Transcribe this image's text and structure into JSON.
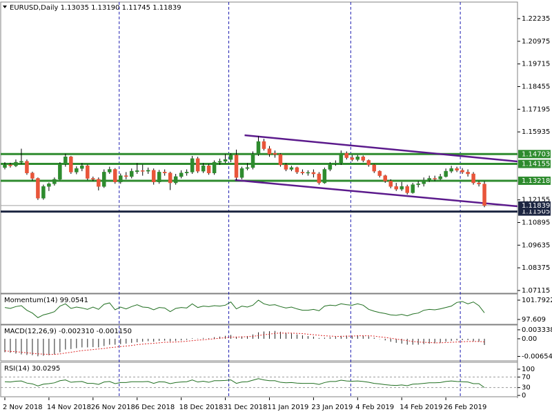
{
  "chart_data": [
    {
      "type": "candlestick",
      "title": "EURUSD,Daily  1.13035 1.13190 1.11745 1.11839",
      "bull_color": "#2e8b2e",
      "bear_color": "#e8553a",
      "open": [
        1.1395,
        1.141,
        1.1405,
        1.1425,
        1.143,
        1.1365,
        1.1335,
        1.1225,
        1.129,
        1.1305,
        1.133,
        1.1415,
        1.1455,
        1.137,
        1.139,
        1.1405,
        1.1335,
        1.133,
        1.129,
        1.137,
        1.1385,
        1.1315,
        1.135,
        1.1345,
        1.1372,
        1.1378,
        1.1375,
        1.138,
        1.1315,
        1.137,
        1.1365,
        1.131,
        1.1345,
        1.1365,
        1.137,
        1.1445,
        1.1375,
        1.1405,
        1.1365,
        1.1425,
        1.143,
        1.144,
        1.1465,
        1.134,
        1.139,
        1.1395,
        1.147,
        1.154,
        1.15,
        1.1475,
        1.1468,
        1.141,
        1.1385,
        1.1395,
        1.137,
        1.1365,
        1.1368,
        1.136,
        1.131,
        1.1385,
        1.1415,
        1.142,
        1.1475,
        1.145,
        1.144,
        1.1455,
        1.1435,
        1.141,
        1.1375,
        1.135,
        1.132,
        1.129,
        1.1275,
        1.129,
        1.1255,
        1.13,
        1.1305,
        1.1325,
        1.1335,
        1.1332,
        1.1345,
        1.1375,
        1.139,
        1.138,
        1.137,
        1.136,
        1.131,
        1.13035
      ],
      "high": [
        1.1425,
        1.1422,
        1.144,
        1.15,
        1.144,
        1.1372,
        1.134,
        1.13,
        1.1312,
        1.134,
        1.1425,
        1.1472,
        1.146,
        1.1402,
        1.142,
        1.1412,
        1.1345,
        1.134,
        1.1385,
        1.14,
        1.1392,
        1.1362,
        1.137,
        1.139,
        1.142,
        1.1412,
        1.1395,
        1.139,
        1.1382,
        1.1385,
        1.1372,
        1.136,
        1.138,
        1.1385,
        1.146,
        1.1455,
        1.142,
        1.1415,
        1.1435,
        1.1445,
        1.147,
        1.1475,
        1.1495,
        1.14,
        1.142,
        1.1485,
        1.157,
        1.1555,
        1.1515,
        1.149,
        1.1475,
        1.142,
        1.1405,
        1.14,
        1.1385,
        1.138,
        1.1385,
        1.137,
        1.1395,
        1.1425,
        1.1435,
        1.149,
        1.1485,
        1.1465,
        1.1465,
        1.1462,
        1.144,
        1.1415,
        1.138,
        1.1355,
        1.133,
        1.131,
        1.1315,
        1.13,
        1.131,
        1.132,
        1.134,
        1.135,
        1.135,
        1.136,
        1.139,
        1.1405,
        1.14,
        1.1392,
        1.1385,
        1.137,
        1.132,
        1.1319
      ],
      "low": [
        1.1385,
        1.1395,
        1.1398,
        1.1415,
        1.1355,
        1.1322,
        1.1215,
        1.1216,
        1.1265,
        1.1295,
        1.1325,
        1.14,
        1.136,
        1.1358,
        1.1375,
        1.1325,
        1.132,
        1.1268,
        1.1282,
        1.136,
        1.1305,
        1.1305,
        1.133,
        1.1335,
        1.136,
        1.135,
        1.136,
        1.13,
        1.1305,
        1.135,
        1.127,
        1.13,
        1.1335,
        1.135,
        1.136,
        1.1365,
        1.1365,
        1.1355,
        1.1355,
        1.141,
        1.142,
        1.1425,
        1.1325,
        1.133,
        1.138,
        1.1385,
        1.146,
        1.149,
        1.1455,
        1.145,
        1.14,
        1.1375,
        1.1375,
        1.136,
        1.1355,
        1.135,
        1.134,
        1.13,
        1.1305,
        1.1375,
        1.1405,
        1.141,
        1.144,
        1.143,
        1.143,
        1.1425,
        1.14,
        1.1365,
        1.134,
        1.131,
        1.128,
        1.1265,
        1.1265,
        1.1245,
        1.125,
        1.1285,
        1.129,
        1.1315,
        1.132,
        1.1325,
        1.134,
        1.1365,
        1.137,
        1.136,
        1.1345,
        1.13,
        1.129,
        1.11745
      ],
      "close": [
        1.141,
        1.1405,
        1.1425,
        1.143,
        1.1365,
        1.1335,
        1.1225,
        1.129,
        1.1305,
        1.133,
        1.1415,
        1.1455,
        1.137,
        1.139,
        1.1405,
        1.1335,
        1.133,
        1.129,
        1.137,
        1.1385,
        1.1315,
        1.135,
        1.1345,
        1.1375,
        1.1378,
        1.1375,
        1.138,
        1.1315,
        1.137,
        1.1365,
        1.131,
        1.1345,
        1.1365,
        1.137,
        1.1445,
        1.1375,
        1.1405,
        1.1365,
        1.1425,
        1.143,
        1.144,
        1.1465,
        1.134,
        1.139,
        1.1395,
        1.147,
        1.154,
        1.15,
        1.147,
        1.1468,
        1.141,
        1.1385,
        1.1395,
        1.137,
        1.1365,
        1.1368,
        1.136,
        1.131,
        1.1385,
        1.1415,
        1.142,
        1.1475,
        1.145,
        1.144,
        1.1455,
        1.1435,
        1.141,
        1.1375,
        1.135,
        1.132,
        1.129,
        1.1275,
        1.129,
        1.1255,
        1.13,
        1.1305,
        1.1325,
        1.1335,
        1.1332,
        1.1345,
        1.1375,
        1.139,
        1.138,
        1.137,
        1.136,
        1.131,
        1.13035,
        1.11839
      ],
      "xlim": [
        -0.75,
        93
      ],
      "xticks": [
        {
          "value": 0,
          "label": "2 Nov 2018"
        },
        {
          "value": 8,
          "label": "14 Nov 2018"
        },
        {
          "value": 16,
          "label": "26 Nov 2018"
        },
        {
          "value": 24,
          "label": "6 Dec 2018"
        },
        {
          "value": 32,
          "label": "18 Dec 2018"
        },
        {
          "value": 40,
          "label": "31 Dec 2018"
        },
        {
          "value": 48,
          "label": "11 Jan 2019"
        },
        {
          "value": 56,
          "label": "23 Jan 2019"
        },
        {
          "value": 64,
          "label": "4 Feb 2019"
        },
        {
          "value": 72,
          "label": "14 Feb 2019"
        },
        {
          "value": 80,
          "label": "26 Feb 2019"
        }
      ],
      "separators": [
        20.75,
        40.625,
        62.75,
        82.625
      ],
      "separator_color": "#1a1ab0",
      "ylim": [
        1.0696,
        1.2308
      ],
      "yticks": [
        1.22235,
        1.20975,
        1.19715,
        1.18455,
        1.17195,
        1.15935,
        1.12155,
        1.10895,
        1.09635,
        1.08375,
        1.07115
      ],
      "levels": [
        {
          "value": 1.14703,
          "color": "#2e8b2e"
        },
        {
          "value": 1.14155,
          "color": "#2e8b2e"
        },
        {
          "value": 1.13218,
          "color": "#2e8b2e"
        },
        {
          "value": 1.11505,
          "color": "#1c2541"
        }
      ],
      "bid": {
        "value": 1.11839,
        "color": "#1c2541"
      },
      "trendlines": [
        {
          "x": [
            43.5,
            93
          ],
          "y": [
            1.1575,
            1.14291
          ]
        },
        {
          "x": [
            41.75,
            93
          ],
          "y": [
            1.13256,
            1.11797
          ]
        }
      ],
      "trendline_color": "#5b1a8c"
    },
    {
      "type": "line",
      "title": "Momentum(14) 99.0541",
      "color": "#1f6e1f",
      "values": [
        100.2,
        100.0,
        100.4,
        100.6,
        99.6,
        99.0,
        98.0,
        98.6,
        98.9,
        99.3,
        100.5,
        101.0,
        100.0,
        100.3,
        100.1,
        99.8,
        100.3,
        99.8,
        100.9,
        101.2,
        99.7,
        100.3,
        99.9,
        100.4,
        100.8,
        100.3,
        100.2,
        99.7,
        100.2,
        100.1,
        99.3,
        100.0,
        100.2,
        100.1,
        101.0,
        100.2,
        100.5,
        100.4,
        100.6,
        100.5,
        100.7,
        101.4,
        99.9,
        100.5,
        100.3,
        100.7,
        101.8,
        101.0,
        100.7,
        100.8,
        100.4,
        100.1,
        100.3,
        99.9,
        99.6,
        99.6,
        99.8,
        99.5,
        100.5,
        100.7,
        100.6,
        101.0,
        100.8,
        100.7,
        101.0,
        100.7,
        99.8,
        99.4,
        99.1,
        98.9,
        98.6,
        98.5,
        98.7,
        98.4,
        98.8,
        99.0,
        99.6,
        99.8,
        99.7,
        99.9,
        100.2,
        100.5,
        101.3,
        101.5,
        101.0,
        101.4,
        100.6,
        99.0541
      ],
      "ylim": [
        96.56,
        102.84
      ],
      "yticks": [
        101.7922,
        97.609
      ]
    },
    {
      "type": "macd",
      "title": "MACD(12,26,9) -0.002310 -0.001150",
      "histogram_color": "#222",
      "signal_color": "#d22",
      "histogram": [
        -0.005,
        -0.0052,
        -0.0055,
        -0.0058,
        -0.006,
        -0.0061,
        -0.0065,
        -0.0063,
        -0.0061,
        -0.0058,
        -0.005,
        -0.004,
        -0.0038,
        -0.0035,
        -0.0032,
        -0.0032,
        -0.0031,
        -0.0032,
        -0.0027,
        -0.0022,
        -0.0022,
        -0.002,
        -0.0018,
        -0.0015,
        -0.0013,
        -0.0011,
        -0.0009,
        -0.0011,
        -0.0008,
        -0.0007,
        -0.001,
        -0.0008,
        -0.0006,
        -0.0004,
        0.0002,
        0.0001,
        0.0003,
        0.0002,
        0.0006,
        0.0008,
        0.0011,
        0.0014,
        0.0008,
        0.0009,
        0.001,
        0.0016,
        0.0024,
        0.0027,
        0.0028,
        0.0029,
        0.0026,
        0.0022,
        0.002,
        0.0016,
        0.0013,
        0.001,
        0.0008,
        0.0003,
        0.0004,
        0.0006,
        0.0007,
        0.0011,
        0.0012,
        0.0012,
        0.0013,
        0.0012,
        0.0009,
        0.0004,
        -0.0001,
        -0.0006,
        -0.0011,
        -0.0015,
        -0.0018,
        -0.0022,
        -0.0022,
        -0.0022,
        -0.002,
        -0.0018,
        -0.0017,
        -0.0015,
        -0.0011,
        -0.0008,
        -0.0006,
        -0.0005,
        -0.0005,
        -0.0009,
        -0.0011,
        -0.00231
      ],
      "signal": [
        -0.0045,
        -0.0047,
        -0.0048,
        -0.005,
        -0.0052,
        -0.0054,
        -0.0056,
        -0.0057,
        -0.0058,
        -0.0058,
        -0.0056,
        -0.0053,
        -0.005,
        -0.0047,
        -0.0044,
        -0.0042,
        -0.004,
        -0.0038,
        -0.0036,
        -0.0033,
        -0.0031,
        -0.0029,
        -0.0027,
        -0.0025,
        -0.0022,
        -0.002,
        -0.0018,
        -0.0017,
        -0.0015,
        -0.0013,
        -0.0013,
        -0.0012,
        -0.0011,
        -0.0009,
        -0.0007,
        -0.0005,
        -0.0004,
        -0.0002,
        0.0,
        0.0002,
        0.0004,
        0.0006,
        0.0006,
        0.0007,
        0.0008,
        0.0009,
        0.0012,
        0.0015,
        0.0017,
        0.002,
        0.0021,
        0.0021,
        0.0021,
        0.002,
        0.0019,
        0.0017,
        0.0015,
        0.0013,
        0.0011,
        0.001,
        0.0009,
        0.0009,
        0.001,
        0.001,
        0.0011,
        0.0011,
        0.0011,
        0.001,
        0.0007,
        0.0005,
        0.0002,
        -0.0001,
        -0.0004,
        -0.0007,
        -0.001,
        -0.0012,
        -0.0013,
        -0.0014,
        -0.0015,
        -0.0015,
        -0.0014,
        -0.0013,
        -0.0012,
        -0.0011,
        -0.001,
        -0.001,
        -0.001,
        -0.00115
      ],
      "ylim": [
        -0.0082,
        0.0046
      ],
      "yticks": [
        0.003338,
        {
          "value": 0,
          "label": "0.00"
        },
        -0.006544
      ]
    },
    {
      "type": "line",
      "title": "RSI(14) 30.0295",
      "color": "#1f6e1f",
      "values": [
        52,
        51,
        54,
        55,
        47,
        44,
        36,
        43,
        45,
        48,
        56,
        59,
        50,
        52,
        53,
        46,
        46,
        42,
        51,
        53,
        45,
        49,
        49,
        52,
        52,
        52,
        53,
        46,
        52,
        51,
        45,
        49,
        51,
        52,
        59,
        51,
        54,
        50,
        56,
        56,
        57,
        59,
        46,
        51,
        52,
        58,
        64,
        59,
        56,
        56,
        50,
        48,
        49,
        47,
        46,
        46,
        46,
        42,
        49,
        53,
        53,
        58,
        55,
        54,
        55,
        53,
        50,
        46,
        44,
        41,
        39,
        38,
        40,
        37,
        43,
        44,
        46,
        48,
        48,
        49,
        53,
        55,
        53,
        52,
        51,
        45,
        45,
        30.0295
      ],
      "ylim": [
        -5,
        121
      ],
      "yticks": [
        100,
        70,
        30,
        0
      ],
      "levels": [
        70,
        30
      ]
    }
  ]
}
